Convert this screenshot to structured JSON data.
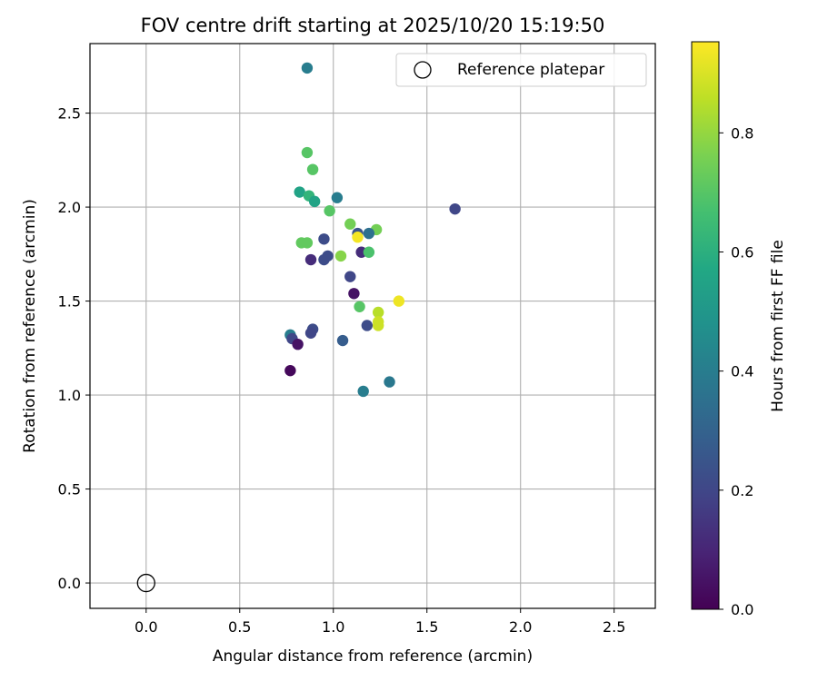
{
  "chart_data": {
    "type": "scatter",
    "title": "FOV centre drift starting at 2025/10/20 15:19:50",
    "xlabel": "Angular distance from reference (arcmin)",
    "ylabel": "Rotation from reference (arcmin)",
    "xlim": [
      -0.3,
      2.72
    ],
    "ylim": [
      -0.135,
      2.87
    ],
    "xticks": [
      "0.0",
      "0.5",
      "1.0",
      "1.5",
      "2.0",
      "2.5"
    ],
    "yticks": [
      "0.0",
      "0.5",
      "1.0",
      "1.5",
      "2.0",
      "2.5"
    ],
    "grid": true,
    "legend": {
      "placement": "top-right",
      "entries": [
        "Reference platepar"
      ]
    },
    "reference": {
      "x": 0.0,
      "y": 0.0
    },
    "colorbar": {
      "label": "Hours from first FF file",
      "range": [
        0.0,
        0.953
      ],
      "ticks": [
        "0.0",
        "0.2",
        "0.4",
        "0.6",
        "0.8"
      ],
      "colormap": "viridis"
    },
    "points": [
      {
        "x": 0.86,
        "y": 2.74,
        "c": 0.4
      },
      {
        "x": 0.86,
        "y": 2.29,
        "c": 0.7
      },
      {
        "x": 0.89,
        "y": 2.2,
        "c": 0.7
      },
      {
        "x": 0.82,
        "y": 2.08,
        "c": 0.55
      },
      {
        "x": 0.87,
        "y": 2.06,
        "c": 0.62
      },
      {
        "x": 0.9,
        "y": 2.03,
        "c": 0.55
      },
      {
        "x": 1.02,
        "y": 2.05,
        "c": 0.4
      },
      {
        "x": 0.98,
        "y": 1.98,
        "c": 0.7
      },
      {
        "x": 1.65,
        "y": 1.99,
        "c": 0.2
      },
      {
        "x": 1.09,
        "y": 1.91,
        "c": 0.75
      },
      {
        "x": 1.23,
        "y": 1.88,
        "c": 0.75
      },
      {
        "x": 1.13,
        "y": 1.86,
        "c": 0.25
      },
      {
        "x": 1.19,
        "y": 1.86,
        "c": 0.35
      },
      {
        "x": 1.13,
        "y": 1.84,
        "c": 0.94
      },
      {
        "x": 0.95,
        "y": 1.83,
        "c": 0.22
      },
      {
        "x": 0.83,
        "y": 1.81,
        "c": 0.72
      },
      {
        "x": 0.86,
        "y": 1.81,
        "c": 0.72
      },
      {
        "x": 1.15,
        "y": 1.76,
        "c": 0.12
      },
      {
        "x": 1.19,
        "y": 1.76,
        "c": 0.68
      },
      {
        "x": 1.04,
        "y": 1.74,
        "c": 0.78
      },
      {
        "x": 0.97,
        "y": 1.74,
        "c": 0.22
      },
      {
        "x": 0.95,
        "y": 1.72,
        "c": 0.22
      },
      {
        "x": 0.88,
        "y": 1.72,
        "c": 0.12
      },
      {
        "x": 1.09,
        "y": 1.63,
        "c": 0.2
      },
      {
        "x": 1.11,
        "y": 1.54,
        "c": 0.05
      },
      {
        "x": 1.35,
        "y": 1.5,
        "c": 0.93
      },
      {
        "x": 1.14,
        "y": 1.47,
        "c": 0.7
      },
      {
        "x": 1.24,
        "y": 1.44,
        "c": 0.85
      },
      {
        "x": 1.24,
        "y": 1.39,
        "c": 0.88
      },
      {
        "x": 1.24,
        "y": 1.37,
        "c": 0.88
      },
      {
        "x": 1.18,
        "y": 1.37,
        "c": 0.22
      },
      {
        "x": 0.89,
        "y": 1.35,
        "c": 0.22
      },
      {
        "x": 0.88,
        "y": 1.33,
        "c": 0.2
      },
      {
        "x": 0.77,
        "y": 1.32,
        "c": 0.4
      },
      {
        "x": 0.78,
        "y": 1.3,
        "c": 0.2
      },
      {
        "x": 1.05,
        "y": 1.29,
        "c": 0.28
      },
      {
        "x": 0.81,
        "y": 1.27,
        "c": 0.05
      },
      {
        "x": 0.77,
        "y": 1.13,
        "c": 0.02
      },
      {
        "x": 1.16,
        "y": 1.02,
        "c": 0.4
      },
      {
        "x": 1.3,
        "y": 1.07,
        "c": 0.38
      }
    ]
  }
}
